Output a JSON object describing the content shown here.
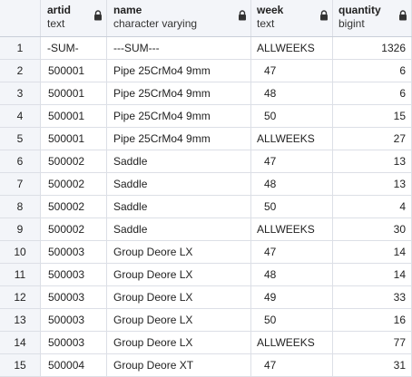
{
  "columns": [
    {
      "name": "artid",
      "type": "text"
    },
    {
      "name": "name",
      "type": "character varying"
    },
    {
      "name": "week",
      "type": "text"
    },
    {
      "name": "quantity",
      "type": "bigint"
    }
  ],
  "rows": [
    {
      "idx": "1",
      "artid": "-SUM-",
      "name": "---SUM---",
      "week": "ALLWEEKS",
      "quantity": "1326"
    },
    {
      "idx": "2",
      "artid": "500001",
      "name": "Pipe 25CrMo4 9mm",
      "week": "47",
      "quantity": "6"
    },
    {
      "idx": "3",
      "artid": "500001",
      "name": "Pipe 25CrMo4 9mm",
      "week": "48",
      "quantity": "6"
    },
    {
      "idx": "4",
      "artid": "500001",
      "name": "Pipe 25CrMo4 9mm",
      "week": "50",
      "quantity": "15"
    },
    {
      "idx": "5",
      "artid": "500001",
      "name": "Pipe 25CrMo4 9mm",
      "week": "ALLWEEKS",
      "quantity": "27"
    },
    {
      "idx": "6",
      "artid": "500002",
      "name": "Saddle",
      "week": "47",
      "quantity": "13"
    },
    {
      "idx": "7",
      "artid": "500002",
      "name": "Saddle",
      "week": "48",
      "quantity": "13"
    },
    {
      "idx": "8",
      "artid": "500002",
      "name": "Saddle",
      "week": "50",
      "quantity": "4"
    },
    {
      "idx": "9",
      "artid": "500002",
      "name": "Saddle",
      "week": "ALLWEEKS",
      "quantity": "30"
    },
    {
      "idx": "10",
      "artid": "500003",
      "name": "Group Deore LX",
      "week": "47",
      "quantity": "14"
    },
    {
      "idx": "11",
      "artid": "500003",
      "name": "Group Deore LX",
      "week": "48",
      "quantity": "14"
    },
    {
      "idx": "12",
      "artid": "500003",
      "name": "Group Deore LX",
      "week": "49",
      "quantity": "33"
    },
    {
      "idx": "13",
      "artid": "500003",
      "name": "Group Deore LX",
      "week": "50",
      "quantity": "16"
    },
    {
      "idx": "14",
      "artid": "500003",
      "name": "Group Deore LX",
      "week": "ALLWEEKS",
      "quantity": "77"
    },
    {
      "idx": "15",
      "artid": "500004",
      "name": "Group Deore XT",
      "week": "47",
      "quantity": "31"
    }
  ],
  "icons": {
    "column_locked": "lock-icon"
  },
  "colors": {
    "header_bg": "#f3f5f9",
    "grid_line": "#dcdfe6"
  }
}
